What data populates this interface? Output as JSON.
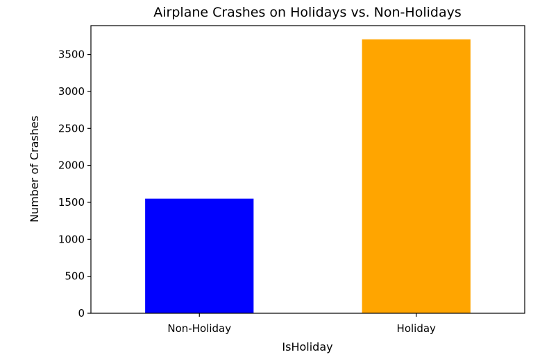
{
  "chart_data": {
    "type": "bar",
    "title": "Airplane Crashes on Holidays vs. Non-Holidays",
    "xlabel": "IsHoliday",
    "ylabel": "Number of Crashes",
    "categories": [
      "Non-Holiday",
      "Holiday"
    ],
    "values": [
      1550,
      3705
    ],
    "colors": [
      "#0000ff",
      "#ffa500"
    ],
    "ylim": [
      0,
      3890
    ],
    "yticks": [
      0,
      500,
      1000,
      1500,
      2000,
      2500,
      3000,
      3500
    ],
    "ytick_labels": [
      "0",
      "500",
      "1000",
      "1500",
      "2000",
      "2500",
      "3000",
      "3500"
    ],
    "grid": false,
    "legend": "none"
  }
}
